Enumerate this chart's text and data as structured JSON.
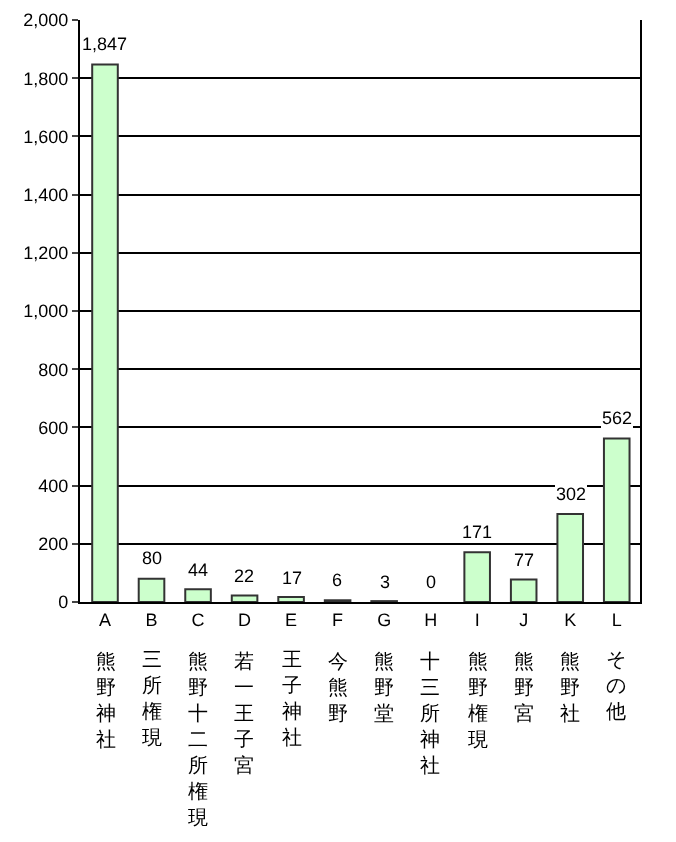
{
  "chart_data": {
    "type": "bar",
    "categories": [
      "A",
      "B",
      "C",
      "D",
      "E",
      "F",
      "G",
      "H",
      "I",
      "J",
      "K",
      "L"
    ],
    "values": [
      1847,
      80,
      44,
      22,
      17,
      6,
      3,
      0,
      171,
      77,
      302,
      562
    ],
    "value_labels": [
      "1,847",
      "80",
      "44",
      "22",
      "17",
      "6",
      "3",
      "0",
      "171",
      "77",
      "302",
      "562"
    ],
    "color": "#ccffcc",
    "ylim": [
      0,
      2000
    ],
    "yticks": [
      0,
      {
        "value": 200,
        "label": "200"
      },
      {
        "value": 400,
        "label": "400"
      },
      {
        "value": 600,
        "label": "600"
      },
      {
        "value": 800,
        "label": "800"
      },
      {
        "value": 1000,
        "label": "1,000"
      },
      {
        "value": 1200,
        "label": "1,200"
      },
      {
        "value": 1400,
        "label": "1,400"
      },
      {
        "value": 1600,
        "label": "1,600"
      },
      {
        "value": 1800,
        "label": "1,800"
      },
      {
        "value": 2000,
        "label": "2,000"
      }
    ],
    "grid": "y",
    "annotations": [
      "熊野神社",
      "三所権現",
      "熊野十二所権現",
      "若一王子宮",
      "王子神社",
      "今熊野",
      "熊野堂",
      "十三所神社",
      "熊野権現",
      "熊野宮",
      "熊野社",
      "その他"
    ]
  }
}
